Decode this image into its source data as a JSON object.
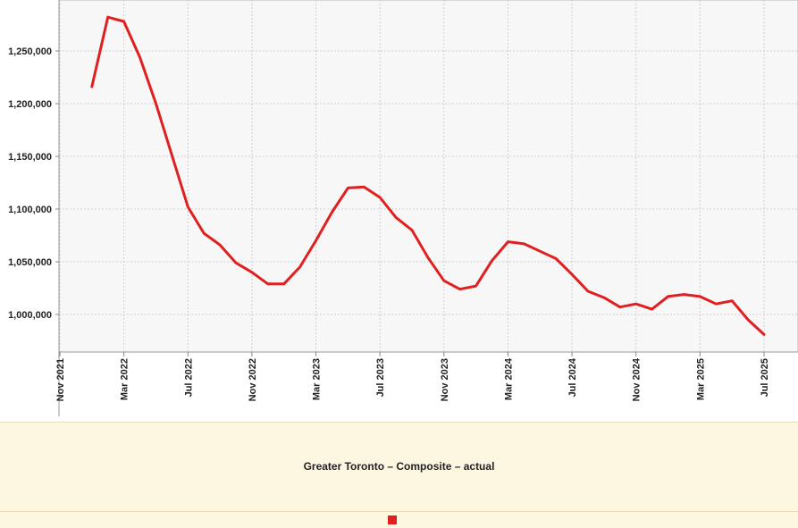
{
  "chart_data": {
    "type": "line",
    "title": "",
    "xlabel": "",
    "ylabel": "",
    "ylim": [
      965000,
      1300000
    ],
    "y_ticks": [
      1000000,
      1050000,
      1100000,
      1150000,
      1200000,
      1250000
    ],
    "y_tick_labels": [
      "1,000,000",
      "1,050,000",
      "1,100,000",
      "1,150,000",
      "1,200,000",
      "1,250,000"
    ],
    "x_ticks": [
      "2021-11",
      "2022-03",
      "2022-07",
      "2022-11",
      "2023-03",
      "2023-07",
      "2023-11",
      "2024-03",
      "2024-07",
      "2024-11",
      "2025-03",
      "2025-07"
    ],
    "x_tick_labels": [
      "Nov 2021",
      "Mar 2022",
      "Jul 2022",
      "Nov 2022",
      "Mar 2023",
      "Jul 2023",
      "Nov 2023",
      "Mar 2024",
      "Jul 2024",
      "Nov 2024",
      "Mar 2025",
      "Jul 2025"
    ],
    "xlim": [
      "2021-11",
      "2025-07"
    ],
    "grid": true,
    "legend": "bottom",
    "series": [
      {
        "name": "Greater Toronto – Composite – actual",
        "color": "#e02020",
        "x": [
          "2022-01",
          "2022-02",
          "2022-03",
          "2022-04",
          "2022-05",
          "2022-06",
          "2022-07",
          "2022-08",
          "2022-09",
          "2022-10",
          "2022-11",
          "2022-12",
          "2023-01",
          "2023-02",
          "2023-03",
          "2023-04",
          "2023-05",
          "2023-06",
          "2023-07",
          "2023-08",
          "2023-09",
          "2023-10",
          "2023-11",
          "2023-12",
          "2024-01",
          "2024-02",
          "2024-03",
          "2024-04",
          "2024-05",
          "2024-06",
          "2024-07",
          "2024-08",
          "2024-09",
          "2024-10",
          "2024-11",
          "2024-12",
          "2025-01",
          "2025-02",
          "2025-03",
          "2025-04",
          "2025-05",
          "2025-06",
          "2025-07"
        ],
        "values": [
          1216000,
          1282000,
          1278000,
          1244000,
          1200000,
          1151000,
          1102000,
          1077000,
          1066000,
          1049000,
          1040000,
          1029000,
          1029000,
          1045000,
          1070000,
          1097000,
          1120000,
          1121000,
          1111000,
          1092000,
          1080000,
          1054000,
          1032000,
          1024000,
          1027000,
          1051000,
          1069000,
          1067000,
          1060000,
          1053000,
          1038000,
          1022000,
          1016000,
          1007000,
          1010000,
          1005000,
          1017000,
          1019000,
          1017000,
          1010000,
          1013000,
          995000,
          981000
        ]
      }
    ]
  },
  "legend": {
    "label": "Greater Toronto – Composite – actual",
    "color": "#e02020"
  }
}
